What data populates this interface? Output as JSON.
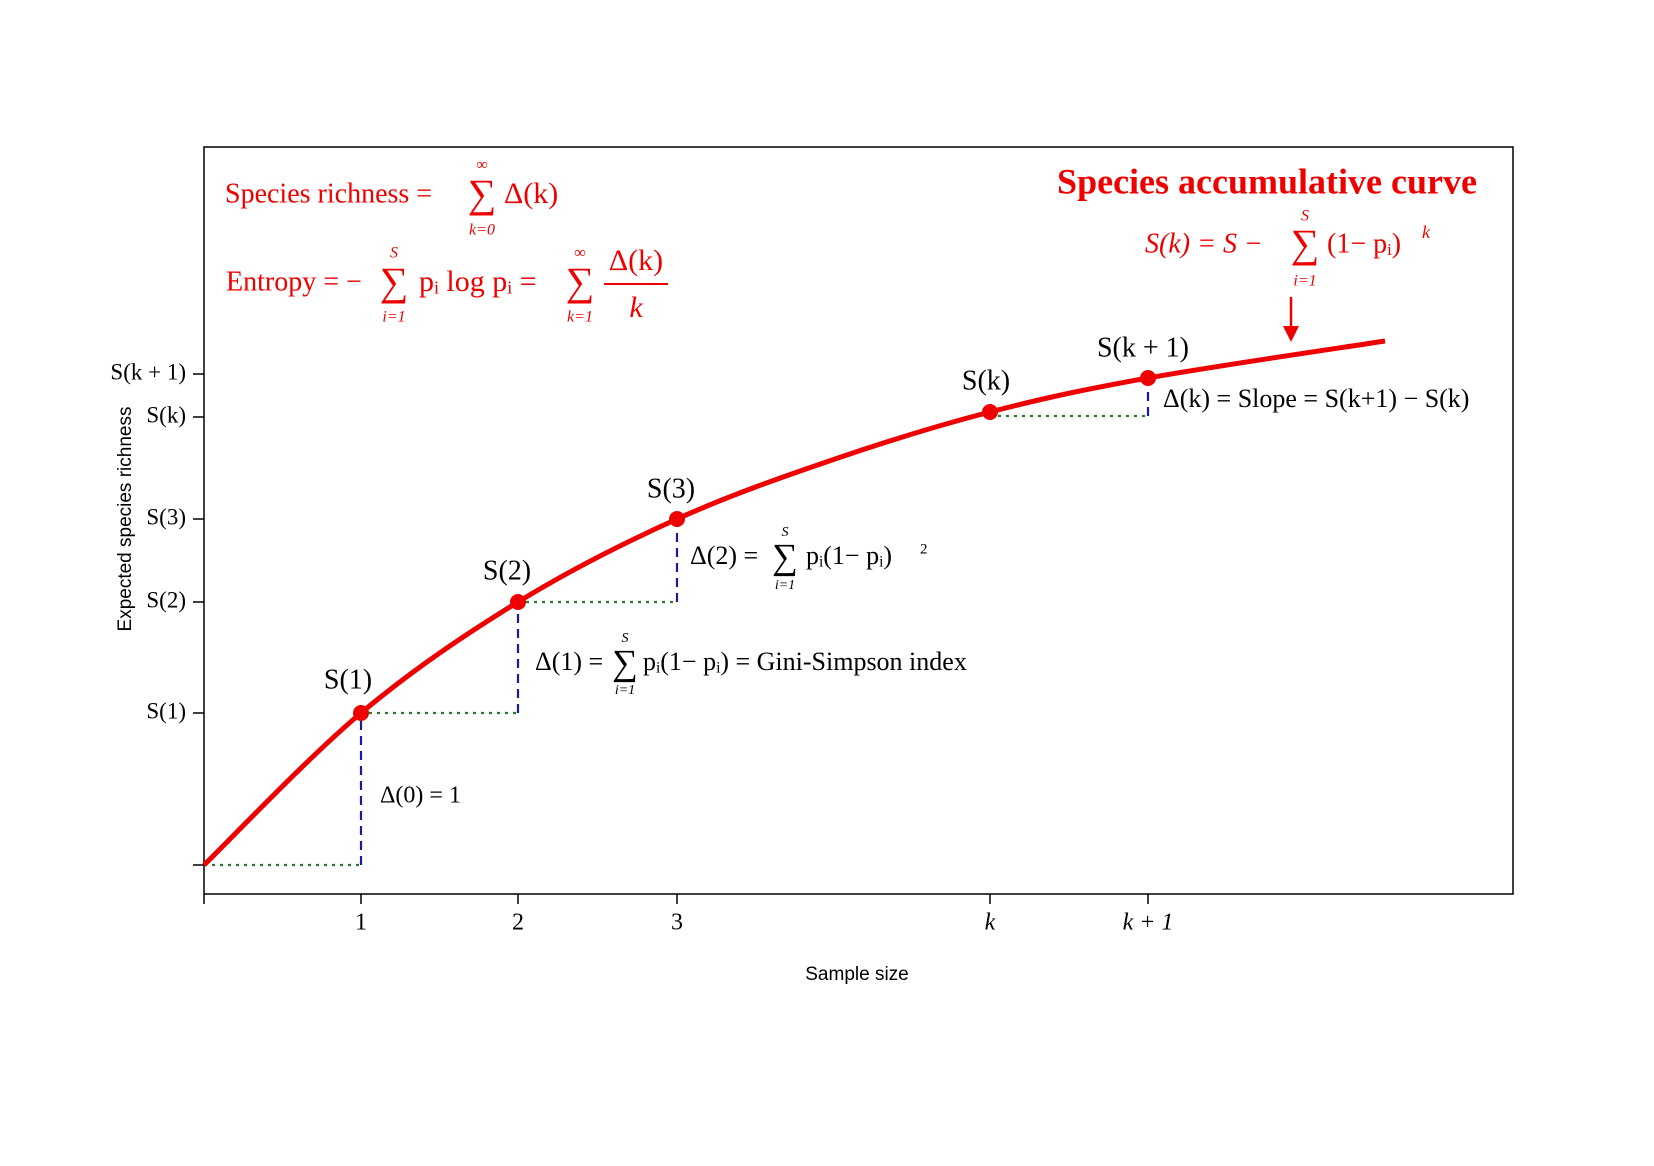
{
  "title": "Species accumulative curve",
  "axes": {
    "x_label": "Sample size",
    "y_label": "Expected species richness",
    "x_ticks": [
      "1",
      "2",
      "3",
      "k",
      "k + 1"
    ],
    "y_ticks": [
      "S(1)",
      "S(2)",
      "S(3)",
      "S(k)",
      "S(k + 1)"
    ]
  },
  "point_labels": [
    "S(1)",
    "S(2)",
    "S(3)",
    "S(k)",
    "S(k + 1)"
  ],
  "formulas": {
    "richness": {
      "lhs": "Species richness =",
      "sum": "∑",
      "upper": "∞",
      "lower": "k=0",
      "rhs": "Δ(k)"
    },
    "entropy": {
      "lhs": "Entropy = −",
      "sum1": "∑",
      "upper1": "S",
      "lower1": "i=1",
      "mid": "pᵢ log pᵢ =",
      "sum2": "∑",
      "upper2": "∞",
      "lower2": "k=1",
      "numerator": "Δ(k)",
      "denominator": "k"
    },
    "curve": {
      "lhs": "S(k) = S −",
      "sum": "∑",
      "upper": "S",
      "lower": "i=1",
      "rhs": "(1− pᵢ)",
      "power": "k"
    },
    "delta0": {
      "text": "Δ(0) = 1"
    },
    "delta1": {
      "lhs": "Δ(1) =",
      "sum": "∑",
      "upper": "S",
      "lower": "i=1",
      "rhs": "pᵢ(1− pᵢ) = Gini-Simpson index"
    },
    "delta2": {
      "lhs": "Δ(2) =",
      "sum": "∑",
      "upper": "S",
      "lower": "i=1",
      "rhs": "pᵢ(1− pᵢ)",
      "power": "2"
    },
    "deltak": {
      "text": "Δ(k) = Slope = S(k+1) − S(k)"
    }
  }
}
